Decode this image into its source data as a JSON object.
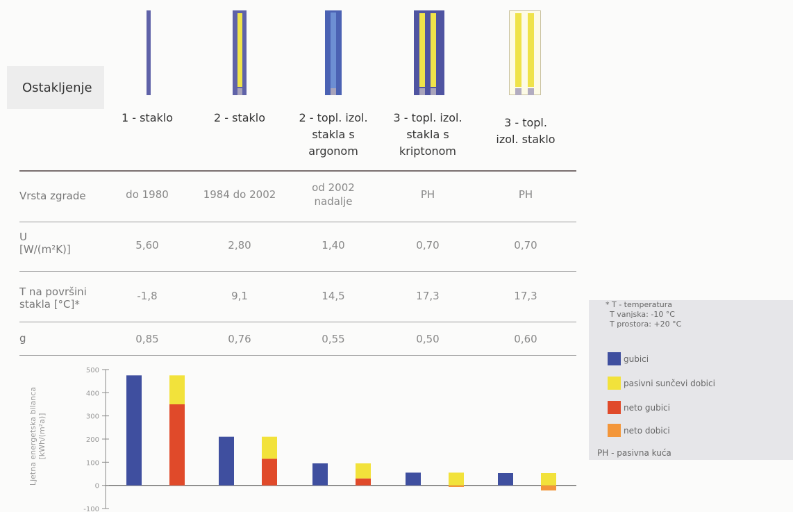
{
  "glazing_label": "Ostakljenje",
  "columns": [
    {
      "lines": [
        "1 - staklo"
      ]
    },
    {
      "lines": [
        "2 - staklo"
      ]
    },
    {
      "lines": [
        "2 - topl. izol.",
        "stakla s",
        "argonom"
      ]
    },
    {
      "lines": [
        "3 - topl. izol.",
        "stakla s",
        "kriptonom"
      ]
    },
    {
      "lines": [
        "3 - topl.",
        "izol. staklo"
      ]
    }
  ],
  "table": {
    "row_labels": [
      [
        "Vrsta zgrade"
      ],
      [
        "U",
        "[W/(m²K)]"
      ],
      [
        "T na površini",
        "stakla [°C]*"
      ],
      [
        "g"
      ]
    ],
    "rows": [
      [
        "do 1980",
        "1984 do 2002",
        "od 2002 nadalje",
        "PH",
        "PH"
      ],
      [
        "5,60",
        "2,80",
        "1,40",
        "0,70",
        "0,70"
      ],
      [
        "-1,8",
        "9,1",
        "14,5",
        "17,3",
        "17,3"
      ],
      [
        "0,85",
        "0,76",
        "0,55",
        "0,50",
        "0,60"
      ]
    ]
  },
  "legend": {
    "note": [
      "* T - temperatura",
      "T vanjska: -10 °C",
      "T prostora: +20 °C"
    ],
    "items": [
      {
        "label": "gubici",
        "color": "#3f4f9f"
      },
      {
        "label": "pasivni sunčevi dobici",
        "color": "#f2e23b"
      },
      {
        "label": "neto gubici",
        "color": "#e04a2a"
      },
      {
        "label": "neto dobici",
        "color": "#f3963a"
      }
    ],
    "ph_note": "PH - pasivna kuća"
  },
  "chart_data": {
    "type": "bar",
    "ylabel": "Ljetna energetska bilanca [kWh/(m²a)]",
    "ylim": [
      -100,
      500
    ],
    "yticks": [
      500,
      400,
      300,
      200,
      100,
      0,
      -100
    ],
    "colors": {
      "gubici": "#3f4f9f",
      "pasivni": "#f2e23b",
      "neto_gubici": "#e04a2a",
      "neto_dobici": "#f3963a"
    },
    "groups": [
      {
        "gubici": 475,
        "pasivni_dobici": 125,
        "neto": 350
      },
      {
        "gubici": 210,
        "pasivni_dobici": 95,
        "neto": 115
      },
      {
        "gubici": 95,
        "pasivni_dobici": 65,
        "neto": 30
      },
      {
        "gubici": 55,
        "pasivni_dobici": 62,
        "neto": -7
      },
      {
        "gubici": 53,
        "pasivni_dobici": 75,
        "neto": -22
      }
    ]
  }
}
